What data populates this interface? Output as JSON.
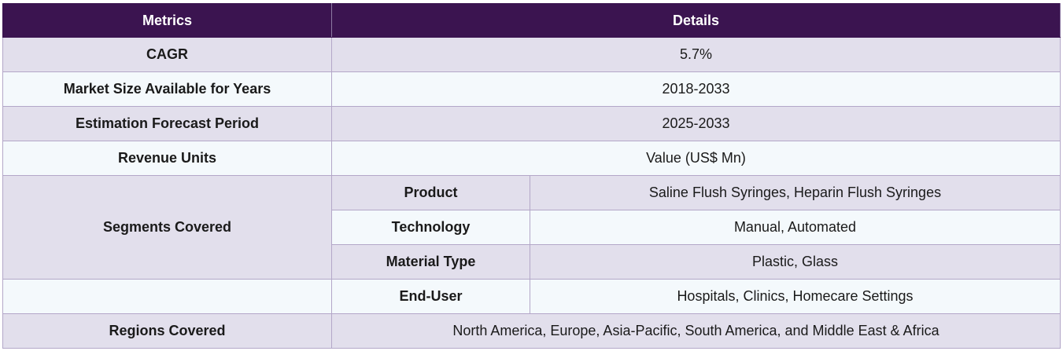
{
  "table": {
    "headers": {
      "metrics": "Metrics",
      "details": "Details"
    },
    "rows": {
      "cagr": {
        "label": "CAGR",
        "value": "5.7%"
      },
      "market_size": {
        "label": "Market Size Available for Years",
        "value": "2018-2033"
      },
      "forecast": {
        "label": "Estimation Forecast Period",
        "value": "2025-2033"
      },
      "revenue": {
        "label": "Revenue Units",
        "value": "Value (US$ Mn)"
      },
      "segments": {
        "label": "Segments Covered",
        "items": [
          {
            "name": "Product",
            "value": "Saline Flush Syringes, Heparin Flush Syringes"
          },
          {
            "name": "Technology",
            "value": "Manual, Automated"
          },
          {
            "name": "Material Type",
            "value": "Plastic, Glass"
          },
          {
            "name": "End-User",
            "value": "Hospitals, Clinics, Homecare Settings"
          }
        ]
      },
      "regions": {
        "label": "Regions Covered",
        "value": "North America, Europe, Asia-Pacific, South America, and Middle East & Africa"
      }
    }
  }
}
